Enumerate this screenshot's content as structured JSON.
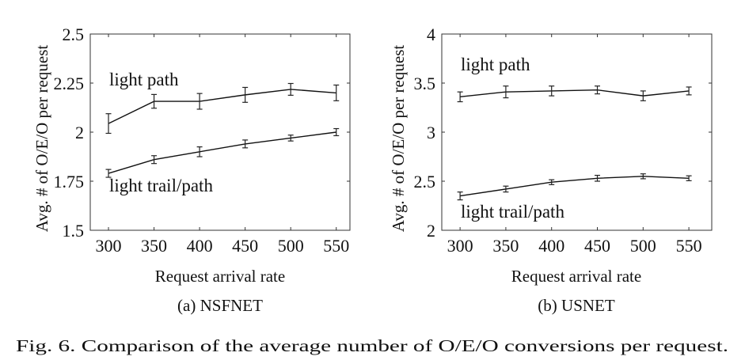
{
  "figure": {
    "caption": "Fig. 6.  Comparison of the average number of O/E/O conversions per request."
  },
  "chart_data": [
    {
      "type": "line",
      "subcaption": "(a) NSFNET",
      "xlabel": "Request arrival rate",
      "ylabel": "Avg. # of O/E/O per request",
      "x": [
        300,
        350,
        400,
        450,
        500,
        550
      ],
      "xticks": [
        "300",
        "350",
        "400",
        "450",
        "500",
        "550"
      ],
      "yticks": [
        "1.5",
        "1.75",
        "2",
        "2.25",
        "2.5"
      ],
      "ytick_values": [
        1.5,
        1.75,
        2,
        2.25,
        2.5
      ],
      "ylim": [
        1.5,
        2.5
      ],
      "xlim": [
        280,
        565
      ],
      "grid": false,
      "series": [
        {
          "name": "light path",
          "values": [
            2.044,
            2.157,
            2.157,
            2.19,
            2.218,
            2.2
          ],
          "errors": [
            0.05,
            0.035,
            0.04,
            0.038,
            0.03,
            0.04
          ]
        },
        {
          "name": "light trail/path",
          "values": [
            1.79,
            1.86,
            1.9,
            1.94,
            1.97,
            2.0
          ],
          "errors": [
            0.02,
            0.02,
            0.025,
            0.02,
            0.015,
            0.018
          ]
        }
      ],
      "annotations": [
        "light path",
        "light trail/path"
      ]
    },
    {
      "type": "line",
      "subcaption": "(b) USNET",
      "xlabel": "Request arrival rate",
      "ylabel": "Avg. # of O/E/O per request",
      "x": [
        300,
        350,
        400,
        450,
        500,
        550
      ],
      "xticks": [
        "300",
        "350",
        "400",
        "450",
        "500",
        "550"
      ],
      "yticks": [
        "2",
        "2.5",
        "3",
        "3.5",
        "4"
      ],
      "ytick_values": [
        2,
        2.5,
        3,
        3.5,
        4
      ],
      "ylim": [
        2,
        4
      ],
      "xlim": [
        280,
        575
      ],
      "grid": false,
      "series": [
        {
          "name": "light path",
          "values": [
            3.36,
            3.41,
            3.42,
            3.43,
            3.37,
            3.42
          ],
          "errors": [
            0.05,
            0.06,
            0.05,
            0.04,
            0.05,
            0.04
          ]
        },
        {
          "name": "light trail/path",
          "values": [
            2.35,
            2.42,
            2.49,
            2.53,
            2.55,
            2.53
          ],
          "errors": [
            0.04,
            0.03,
            0.025,
            0.03,
            0.025,
            0.025
          ]
        }
      ],
      "annotations": [
        "light path",
        "light trail/path"
      ]
    }
  ]
}
